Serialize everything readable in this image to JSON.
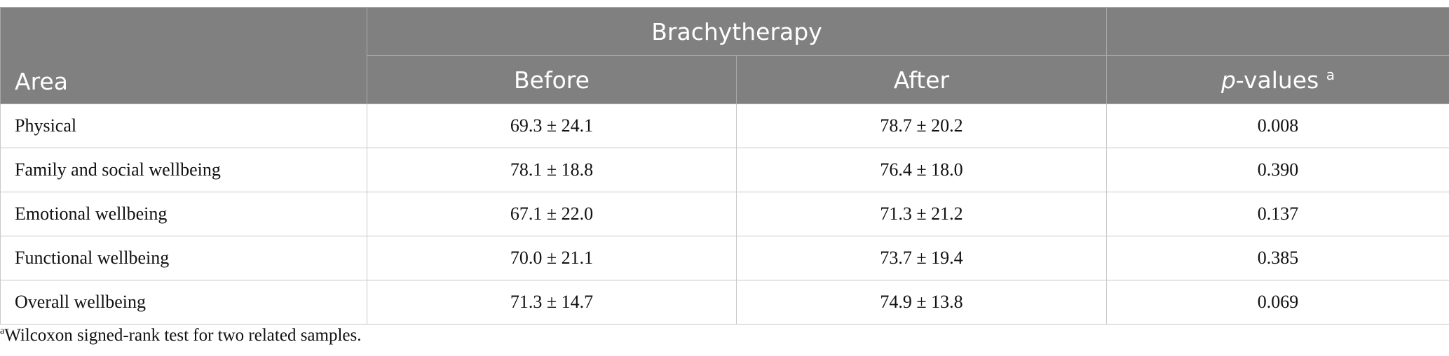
{
  "table": {
    "group_header": "Brachytherapy",
    "columns": [
      "Area",
      "Before",
      "After",
      {
        "italic": "p",
        "text": "-values",
        "note": "a"
      }
    ],
    "rows": [
      [
        "Physical",
        "69.3 ± 24.1",
        "78.7 ± 20.2",
        "0.008"
      ],
      [
        "Family and social wellbeing",
        "78.1 ± 18.8",
        "76.4 ± 18.0",
        "0.390"
      ],
      [
        "Emotional wellbeing",
        "67.1 ± 22.0",
        "71.3 ± 21.2",
        "0.137"
      ],
      [
        "Functional wellbeing",
        "70.0 ± 21.1",
        "73.7 ± 19.4",
        "0.385"
      ],
      [
        "Overall wellbeing",
        "71.3 ± 14.7",
        "74.9 ± 13.8",
        "0.069"
      ]
    ]
  },
  "footnote": {
    "note": "a",
    "text": "Wilcoxon signed-rank test for two related samples."
  }
}
